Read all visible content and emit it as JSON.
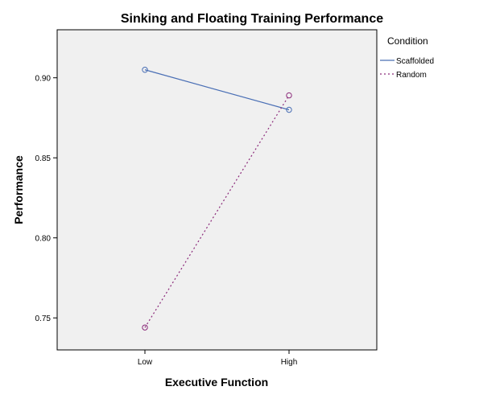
{
  "chart_data": {
    "type": "line",
    "title": "Sinking and Floating Training Performance",
    "xlabel": "Executive Function",
    "ylabel": "Performance",
    "categories": [
      "Low",
      "High"
    ],
    "ylim": [
      0.73,
      0.93
    ],
    "yticks": [
      0.75,
      0.8,
      0.85,
      0.9
    ],
    "ytick_labels": [
      "0.75",
      "0.80",
      "0.85",
      "0.90"
    ],
    "grid": false,
    "legend": {
      "title": "Condition",
      "position": "right"
    },
    "series": [
      {
        "name": "Scaffolded",
        "values": [
          0.905,
          0.88
        ],
        "color": "#4a6fb5",
        "dash": "solid",
        "marker": "circle"
      },
      {
        "name": "Random",
        "values": [
          0.744,
          0.889
        ],
        "color": "#8b2a7a",
        "dash": "dotted",
        "marker": "circle"
      }
    ]
  }
}
